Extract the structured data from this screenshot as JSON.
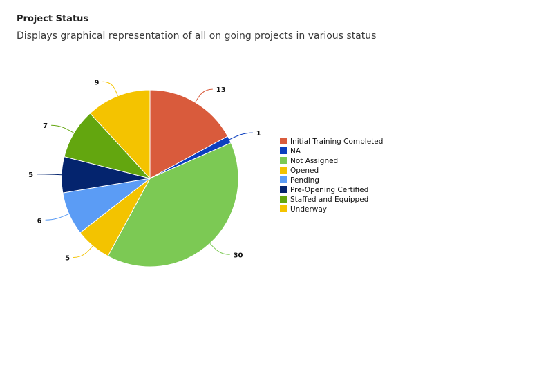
{
  "header": {
    "title": "Project Status",
    "subtitle": "Displays graphical representation of all on going projects in various status"
  },
  "chart_data": {
    "type": "pie",
    "title": "",
    "legend_position": "right",
    "slices": [
      {
        "name": "Initial Training Completed",
        "value": 13,
        "color": "#d95b3c"
      },
      {
        "name": "NA",
        "value": 1,
        "color": "#0c3fbf"
      },
      {
        "name": "Not Assigned",
        "value": 30,
        "color": "#7cc954"
      },
      {
        "name": "Opened",
        "value": 5,
        "color": "#f3c300"
      },
      {
        "name": "Pending",
        "value": 6,
        "color": "#5b9cf5"
      },
      {
        "name": "Pre-Opening Certified",
        "value": 5,
        "color": "#04246e"
      },
      {
        "name": "Staffed and Equipped",
        "value": 7,
        "color": "#63a60f"
      },
      {
        "name": "Underway",
        "value": 9,
        "color": "#f4c300"
      }
    ]
  }
}
